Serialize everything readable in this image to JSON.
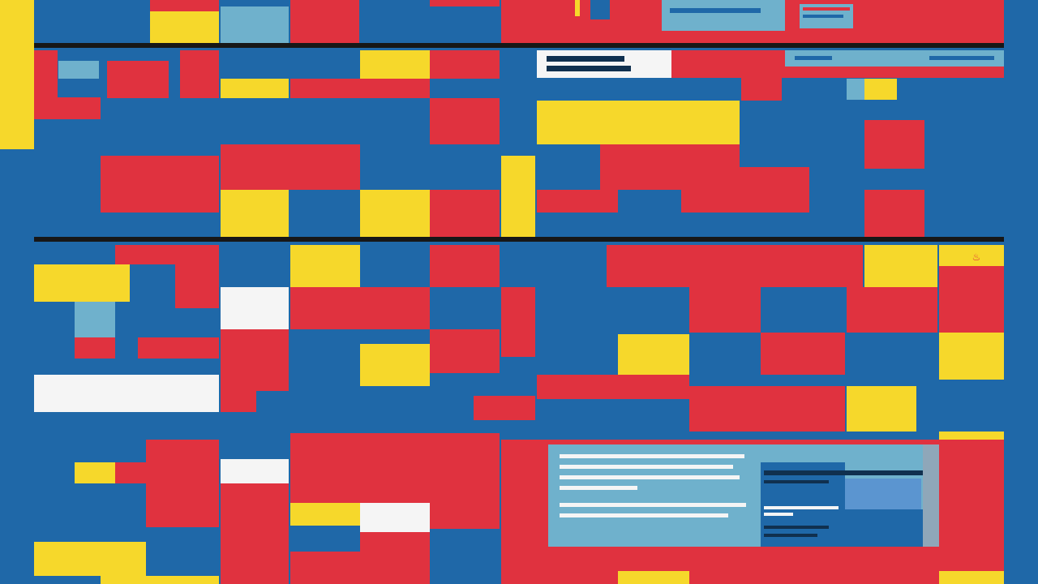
{
  "palette": {
    "blue": "#1f68a8",
    "red": "#e0323f",
    "yellow": "#f6d82b",
    "light_blue": "#6fb1cc",
    "white": "#f5f5f5",
    "black": "#171717",
    "dark_navy": "#10304f"
  },
  "marker": {
    "icon": "flame-icon",
    "glyph": "♨",
    "color": "#e0323f"
  }
}
